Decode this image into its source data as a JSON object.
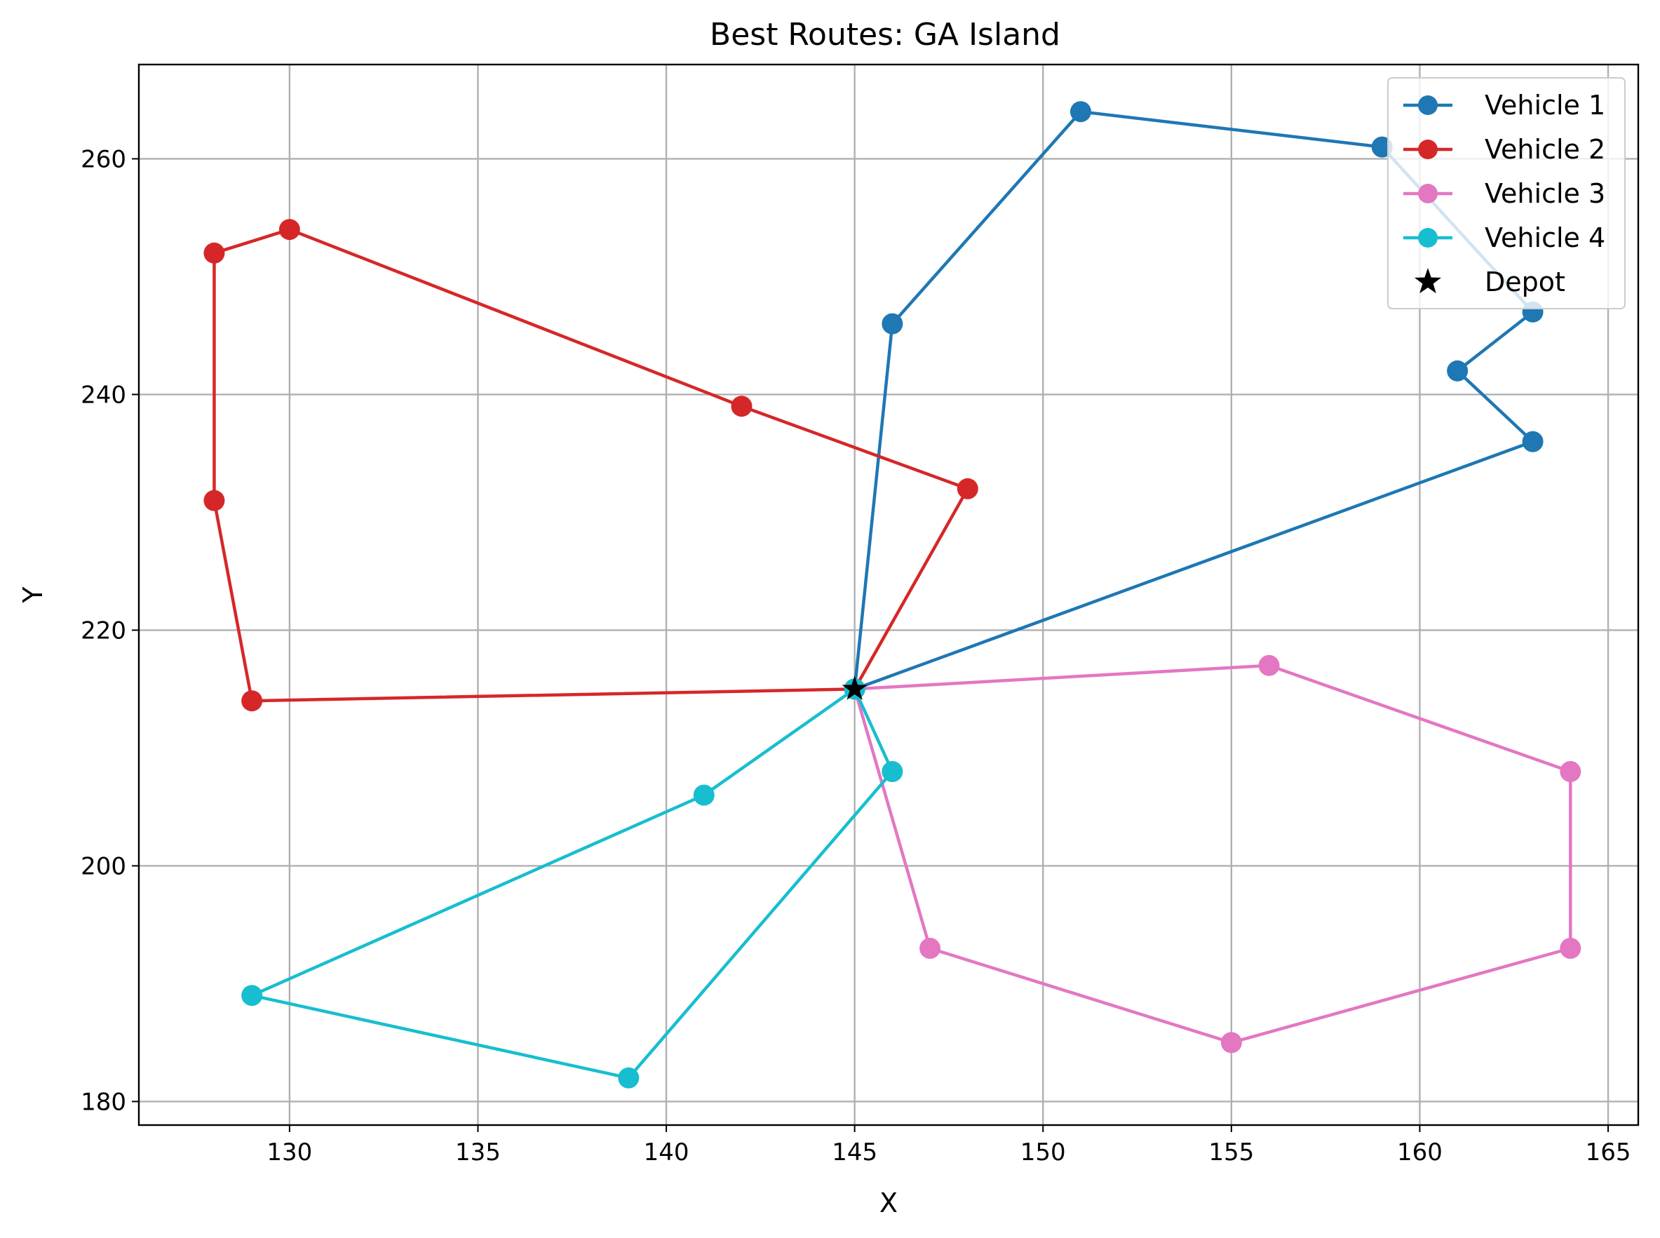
{
  "chart_data": {
    "type": "line",
    "title": "Best Routes: GA Island",
    "xlabel": "X",
    "ylabel": "Y",
    "xlim": [
      126,
      165.8
    ],
    "ylim": [
      178,
      268
    ],
    "xticks": [
      130,
      135,
      140,
      145,
      150,
      155,
      160,
      165
    ],
    "yticks": [
      180,
      200,
      220,
      240,
      260
    ],
    "grid": true,
    "legend_position": "top-right",
    "series": [
      {
        "name": "Vehicle 1",
        "color": "#1f77b4",
        "marker": "circle",
        "points": [
          [
            145,
            215
          ],
          [
            146,
            246
          ],
          [
            151,
            264
          ],
          [
            159,
            261
          ],
          [
            163,
            247
          ],
          [
            161,
            242
          ],
          [
            163,
            236
          ],
          [
            145,
            215
          ]
        ]
      },
      {
        "name": "Vehicle 2",
        "color": "#d62728",
        "marker": "circle",
        "points": [
          [
            145,
            215
          ],
          [
            148,
            232
          ],
          [
            142,
            239
          ],
          [
            130,
            254
          ],
          [
            128,
            252
          ],
          [
            128,
            231
          ],
          [
            129,
            214
          ],
          [
            145,
            215
          ]
        ]
      },
      {
        "name": "Vehicle 3",
        "color": "#e377c2",
        "marker": "circle",
        "points": [
          [
            145,
            215
          ],
          [
            156,
            217
          ],
          [
            164,
            208
          ],
          [
            164,
            193
          ],
          [
            155,
            185
          ],
          [
            147,
            193
          ],
          [
            145,
            215
          ]
        ]
      },
      {
        "name": "Vehicle 4",
        "color": "#17becf",
        "marker": "circle",
        "points": [
          [
            145,
            215
          ],
          [
            146,
            208
          ],
          [
            139,
            182
          ],
          [
            129,
            189
          ],
          [
            141,
            206
          ],
          [
            145,
            215
          ]
        ]
      }
    ],
    "depot": {
      "name": "Depot",
      "x": 145,
      "y": 215,
      "color": "#000000",
      "marker": "star"
    }
  }
}
